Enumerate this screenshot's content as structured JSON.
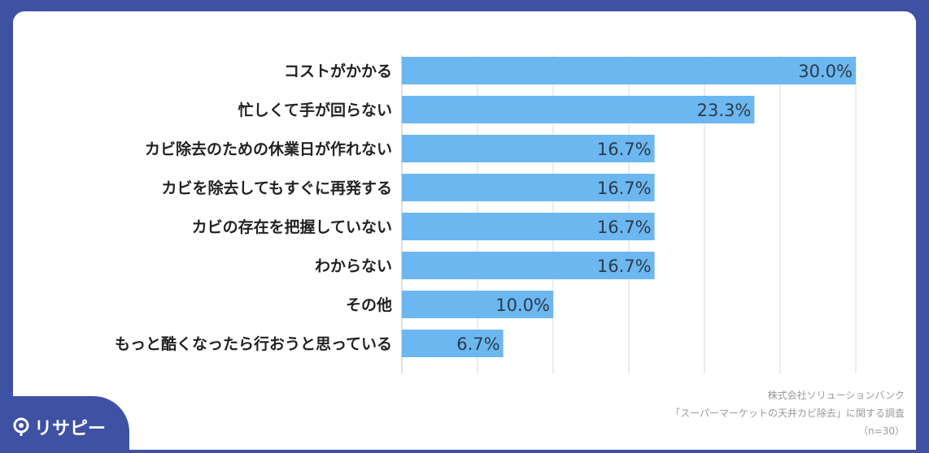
{
  "chart_data": {
    "type": "bar",
    "orientation": "horizontal",
    "categories": [
      "コストがかかる",
      "忙しくて手が回らない",
      "カビ除去のための休業日が作れない",
      "カビを除去してもすぐに再発する",
      "カビの存在を把握していない",
      "わからない",
      "その他",
      "もっと酷くなったら行おうと思っている"
    ],
    "values": [
      30.0,
      23.3,
      16.7,
      16.7,
      16.7,
      16.7,
      10.0,
      6.7
    ],
    "value_labels": [
      "30.0%",
      "23.3%",
      "16.7%",
      "16.7%",
      "16.7%",
      "16.7%",
      "10.0%",
      "6.7%"
    ],
    "xlim": [
      0,
      30
    ],
    "grid": true,
    "bar_color": "#6cb7f0"
  },
  "source": {
    "line1": "株式会社ソリューションバンク",
    "line2": "「スーパーマーケットの天井カビ除去」に関する調査",
    "line3": "（n=30）"
  },
  "logo": {
    "text": "リサピー"
  },
  "colors": {
    "frame": "#3f51a3",
    "bar": "#6cb7f0",
    "grid": "#d9d9d9"
  }
}
